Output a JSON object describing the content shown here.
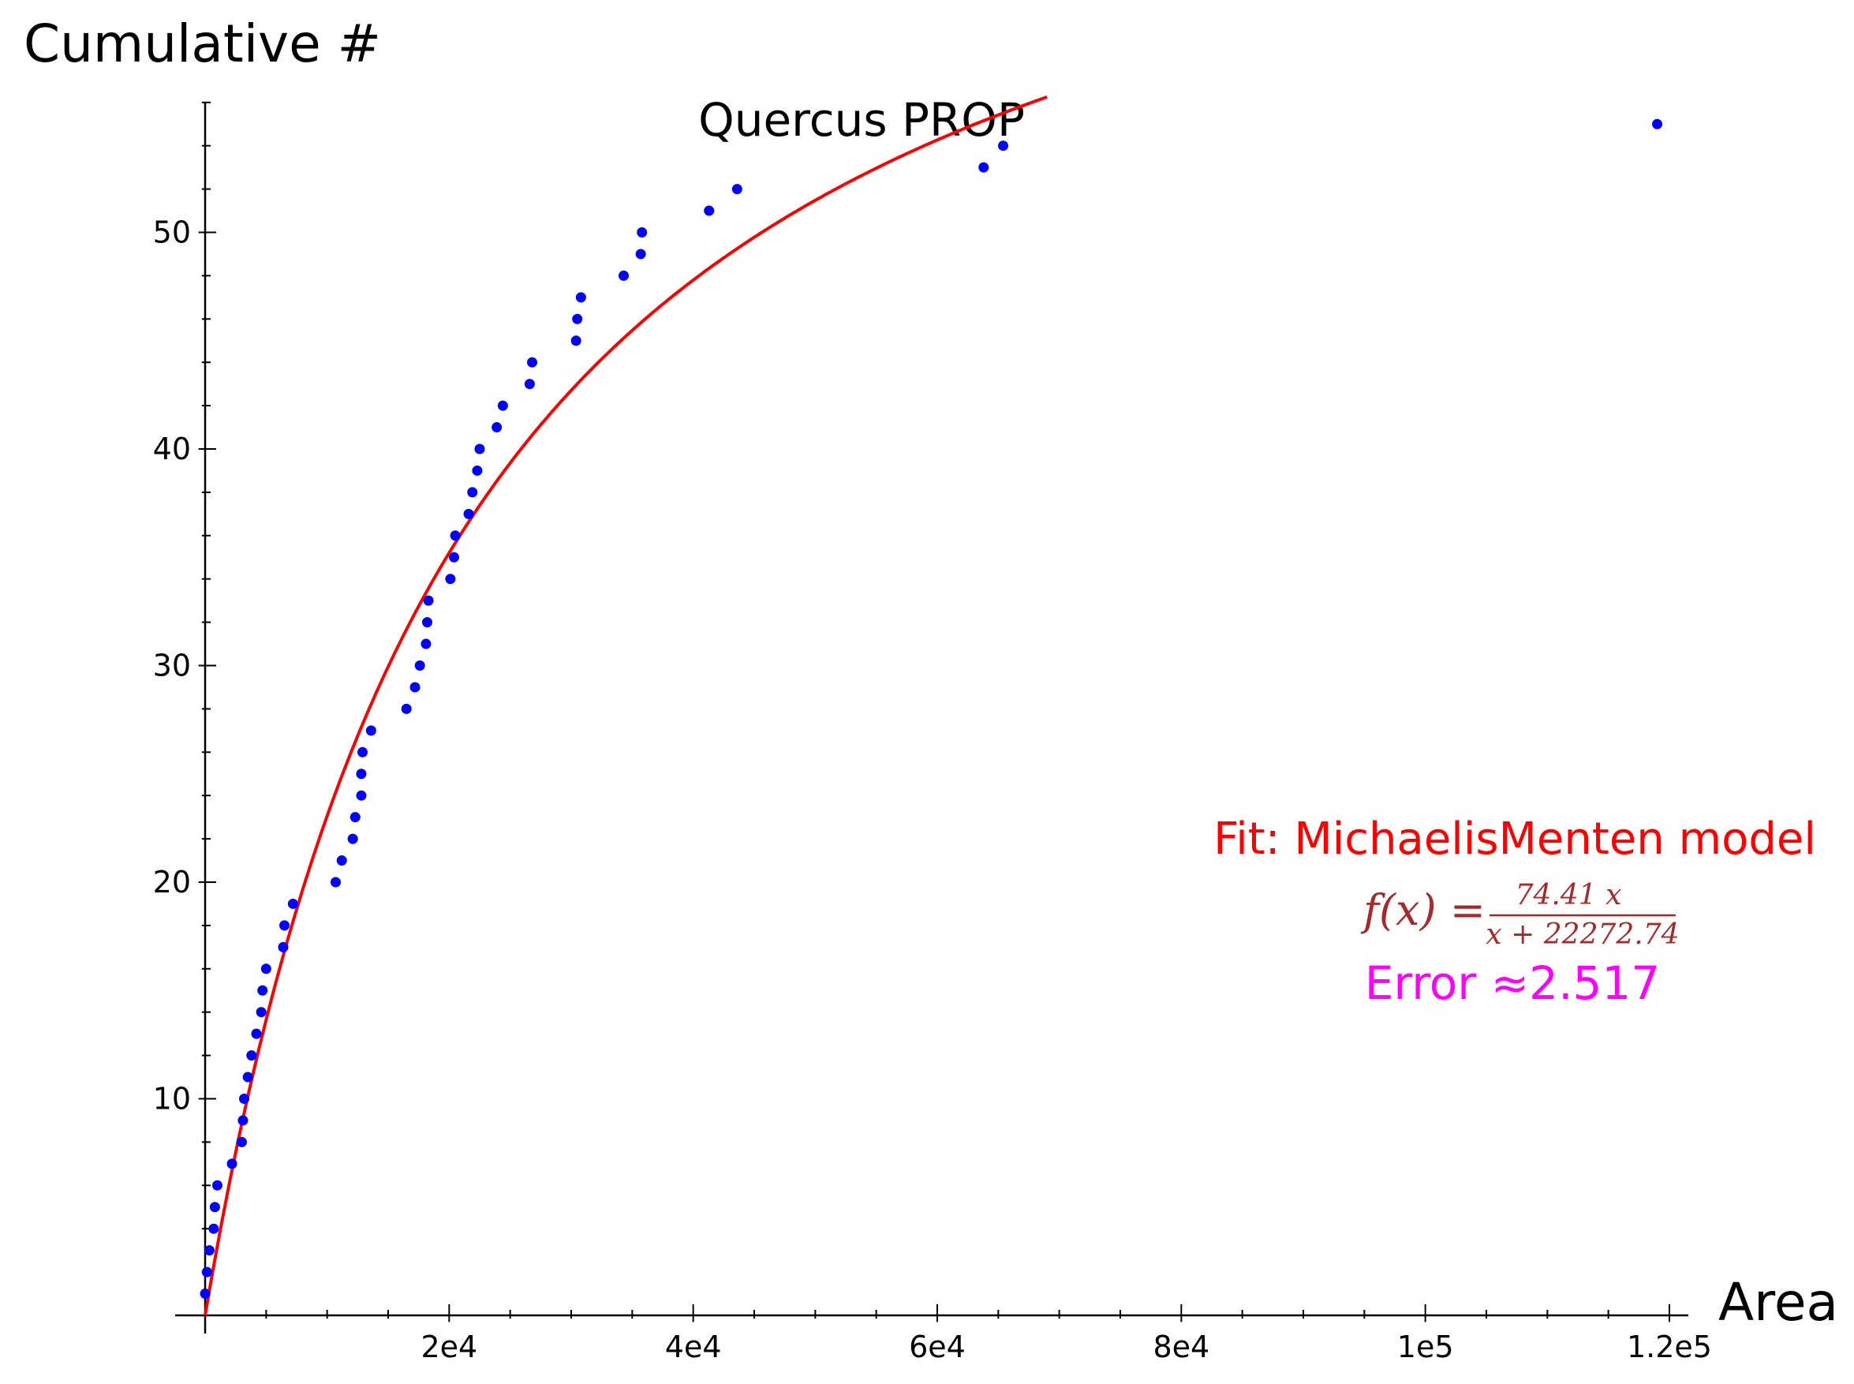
{
  "chart_data": {
    "type": "scatter",
    "title": "Quercus PROP",
    "xlabel": "Area",
    "ylabel": "Cumulative #",
    "xlim": [
      0,
      120000
    ],
    "ylim": [
      0,
      56
    ],
    "x_ticks": [
      20000,
      40000,
      60000,
      80000,
      100000,
      120000
    ],
    "x_tick_labels": [
      "2e4",
      "4e4",
      "6e4",
      "8e4",
      "1e5",
      "1.2e5"
    ],
    "y_ticks": [
      10,
      20,
      30,
      40,
      50
    ],
    "y_tick_labels": [
      "10",
      "20",
      "30",
      "40",
      "50"
    ],
    "grid": false,
    "colors": {
      "points": "#0000ff",
      "fit": "#ff0000",
      "formula": "#a52a2a",
      "error": "#ff00ff"
    },
    "series": [
      {
        "kind": "points",
        "x": [
          0,
          150,
          350,
          700,
          800,
          1000,
          2200,
          3000,
          3100,
          3200,
          3500,
          3800,
          4200,
          4600,
          4700,
          5000,
          6400,
          6500,
          7200,
          10700,
          11200,
          12100,
          12300,
          12800,
          12800,
          12900,
          13600,
          16500,
          17200,
          17600,
          18100,
          18200,
          18300,
          20100,
          20400,
          20500,
          21600,
          21900,
          22300,
          22500,
          23900,
          24400,
          26600,
          26800,
          30400,
          30500,
          30800,
          34300,
          35700,
          35800,
          41300,
          43600,
          63800,
          65400,
          119000
        ],
        "y": [
          1,
          2,
          3,
          4,
          5,
          6,
          7,
          8,
          9,
          10,
          11,
          12,
          13,
          14,
          15,
          16,
          17,
          18,
          19,
          20,
          21,
          22,
          23,
          24,
          25,
          26,
          27,
          28,
          29,
          30,
          31,
          32,
          33,
          34,
          35,
          36,
          37,
          38,
          39,
          40,
          41,
          42,
          43,
          44,
          45,
          46,
          47,
          48,
          49,
          50,
          51,
          52,
          53,
          54,
          55
        ]
      },
      {
        "kind": "fit-curve",
        "vmax": 74.41,
        "km": 22272.74,
        "x_range": [
          0,
          69000
        ]
      }
    ],
    "annotations": {
      "fit_label": "Fit: MichaelisMenten model",
      "formula_lhs": "f(x) =",
      "formula_numerator": "74.41 x",
      "formula_denominator": "x + 22272.74",
      "error_label": "Error ≈2.517"
    }
  }
}
